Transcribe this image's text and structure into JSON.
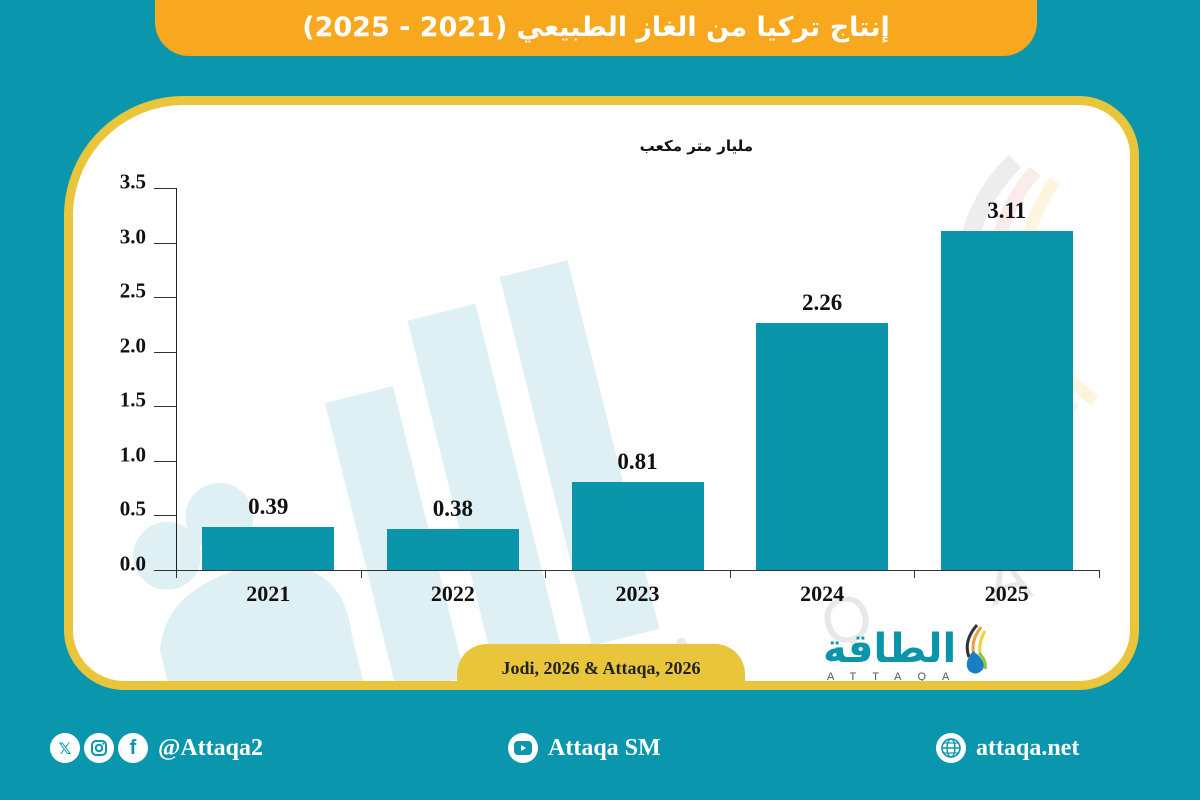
{
  "header": {
    "title": "إنتاج تركيا من الغاز الطبيعي (2021 - 2025)"
  },
  "colors": {
    "background": "#0a96ad",
    "banner": "#f7a81f",
    "card_border": "#e9c53b",
    "bar": "#0a95ab"
  },
  "chart_data": {
    "type": "bar",
    "title": "إنتاج تركيا من الغاز الطبيعي (2021 - 2025)",
    "subtitle": "مليار متر مكعب",
    "xlabel": "",
    "ylabel": "مليار متر مكعب",
    "categories": [
      "2021",
      "2022",
      "2023",
      "2024",
      "2025"
    ],
    "values": [
      0.39,
      0.38,
      0.81,
      2.26,
      3.11
    ],
    "value_labels": [
      "0.39",
      "0.38",
      "0.81",
      "2.26",
      "3.11"
    ],
    "yticks": [
      "0.0",
      "0.5",
      "1.0",
      "1.5",
      "2.0",
      "2.5",
      "3.0",
      "3.5"
    ],
    "ylim": [
      0,
      3.5
    ],
    "grid": false,
    "legend": null
  },
  "source": {
    "text": "Jodi, 2026 & Attaqa, 2026"
  },
  "logo": {
    "arabic": "الطاقة",
    "english": "ATTAQA"
  },
  "footer": {
    "social_handle": "@Attaqa2",
    "social_icons": [
      "x-icon",
      "instagram-icon",
      "facebook-icon"
    ],
    "youtube": "Attaqa SM",
    "website": "attaqa.net"
  }
}
